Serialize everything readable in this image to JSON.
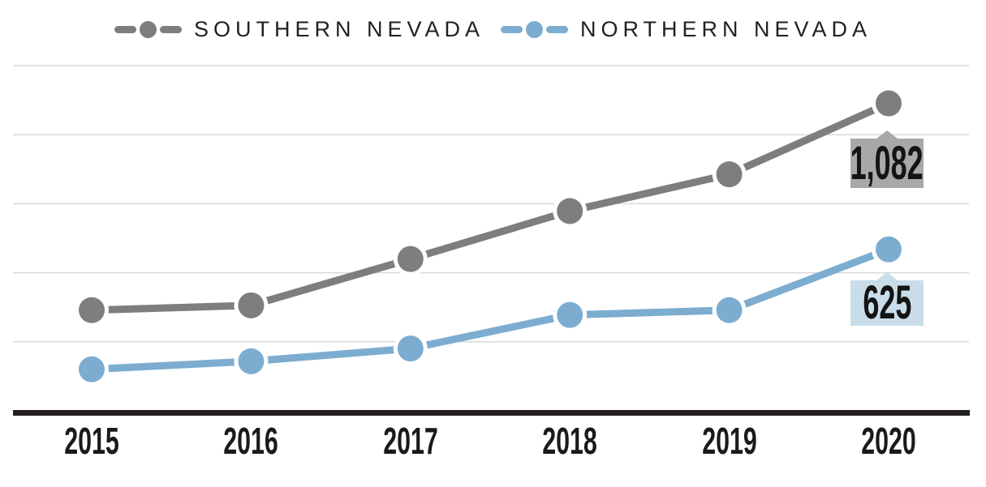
{
  "chart_data": {
    "type": "line",
    "x_labels": [
      "2015",
      "2016",
      "2017",
      "2018",
      "2019",
      "2020"
    ],
    "series": [
      {
        "name": "SOUTHERN NEVADA",
        "color": "#7E7E7E",
        "callout_bg": "#A8A8A8",
        "values": [
          435,
          450,
          595,
          745,
          860,
          1082
        ],
        "end_value_label": "1,082"
      },
      {
        "name": "NORTHERN NEVADA",
        "color": "#7CADD0",
        "callout_bg": "#C9DCEA",
        "values": [
          250,
          275,
          315,
          420,
          435,
          625
        ],
        "end_value_label": "625"
      }
    ],
    "ylim": [
      120,
      1200
    ],
    "grid": "horizontal-only",
    "gridline_count": 5,
    "gridline_color": "#D9D9D9",
    "axis_color": "#231F20",
    "text_color": "#231F20",
    "legend_position": "top-center"
  }
}
